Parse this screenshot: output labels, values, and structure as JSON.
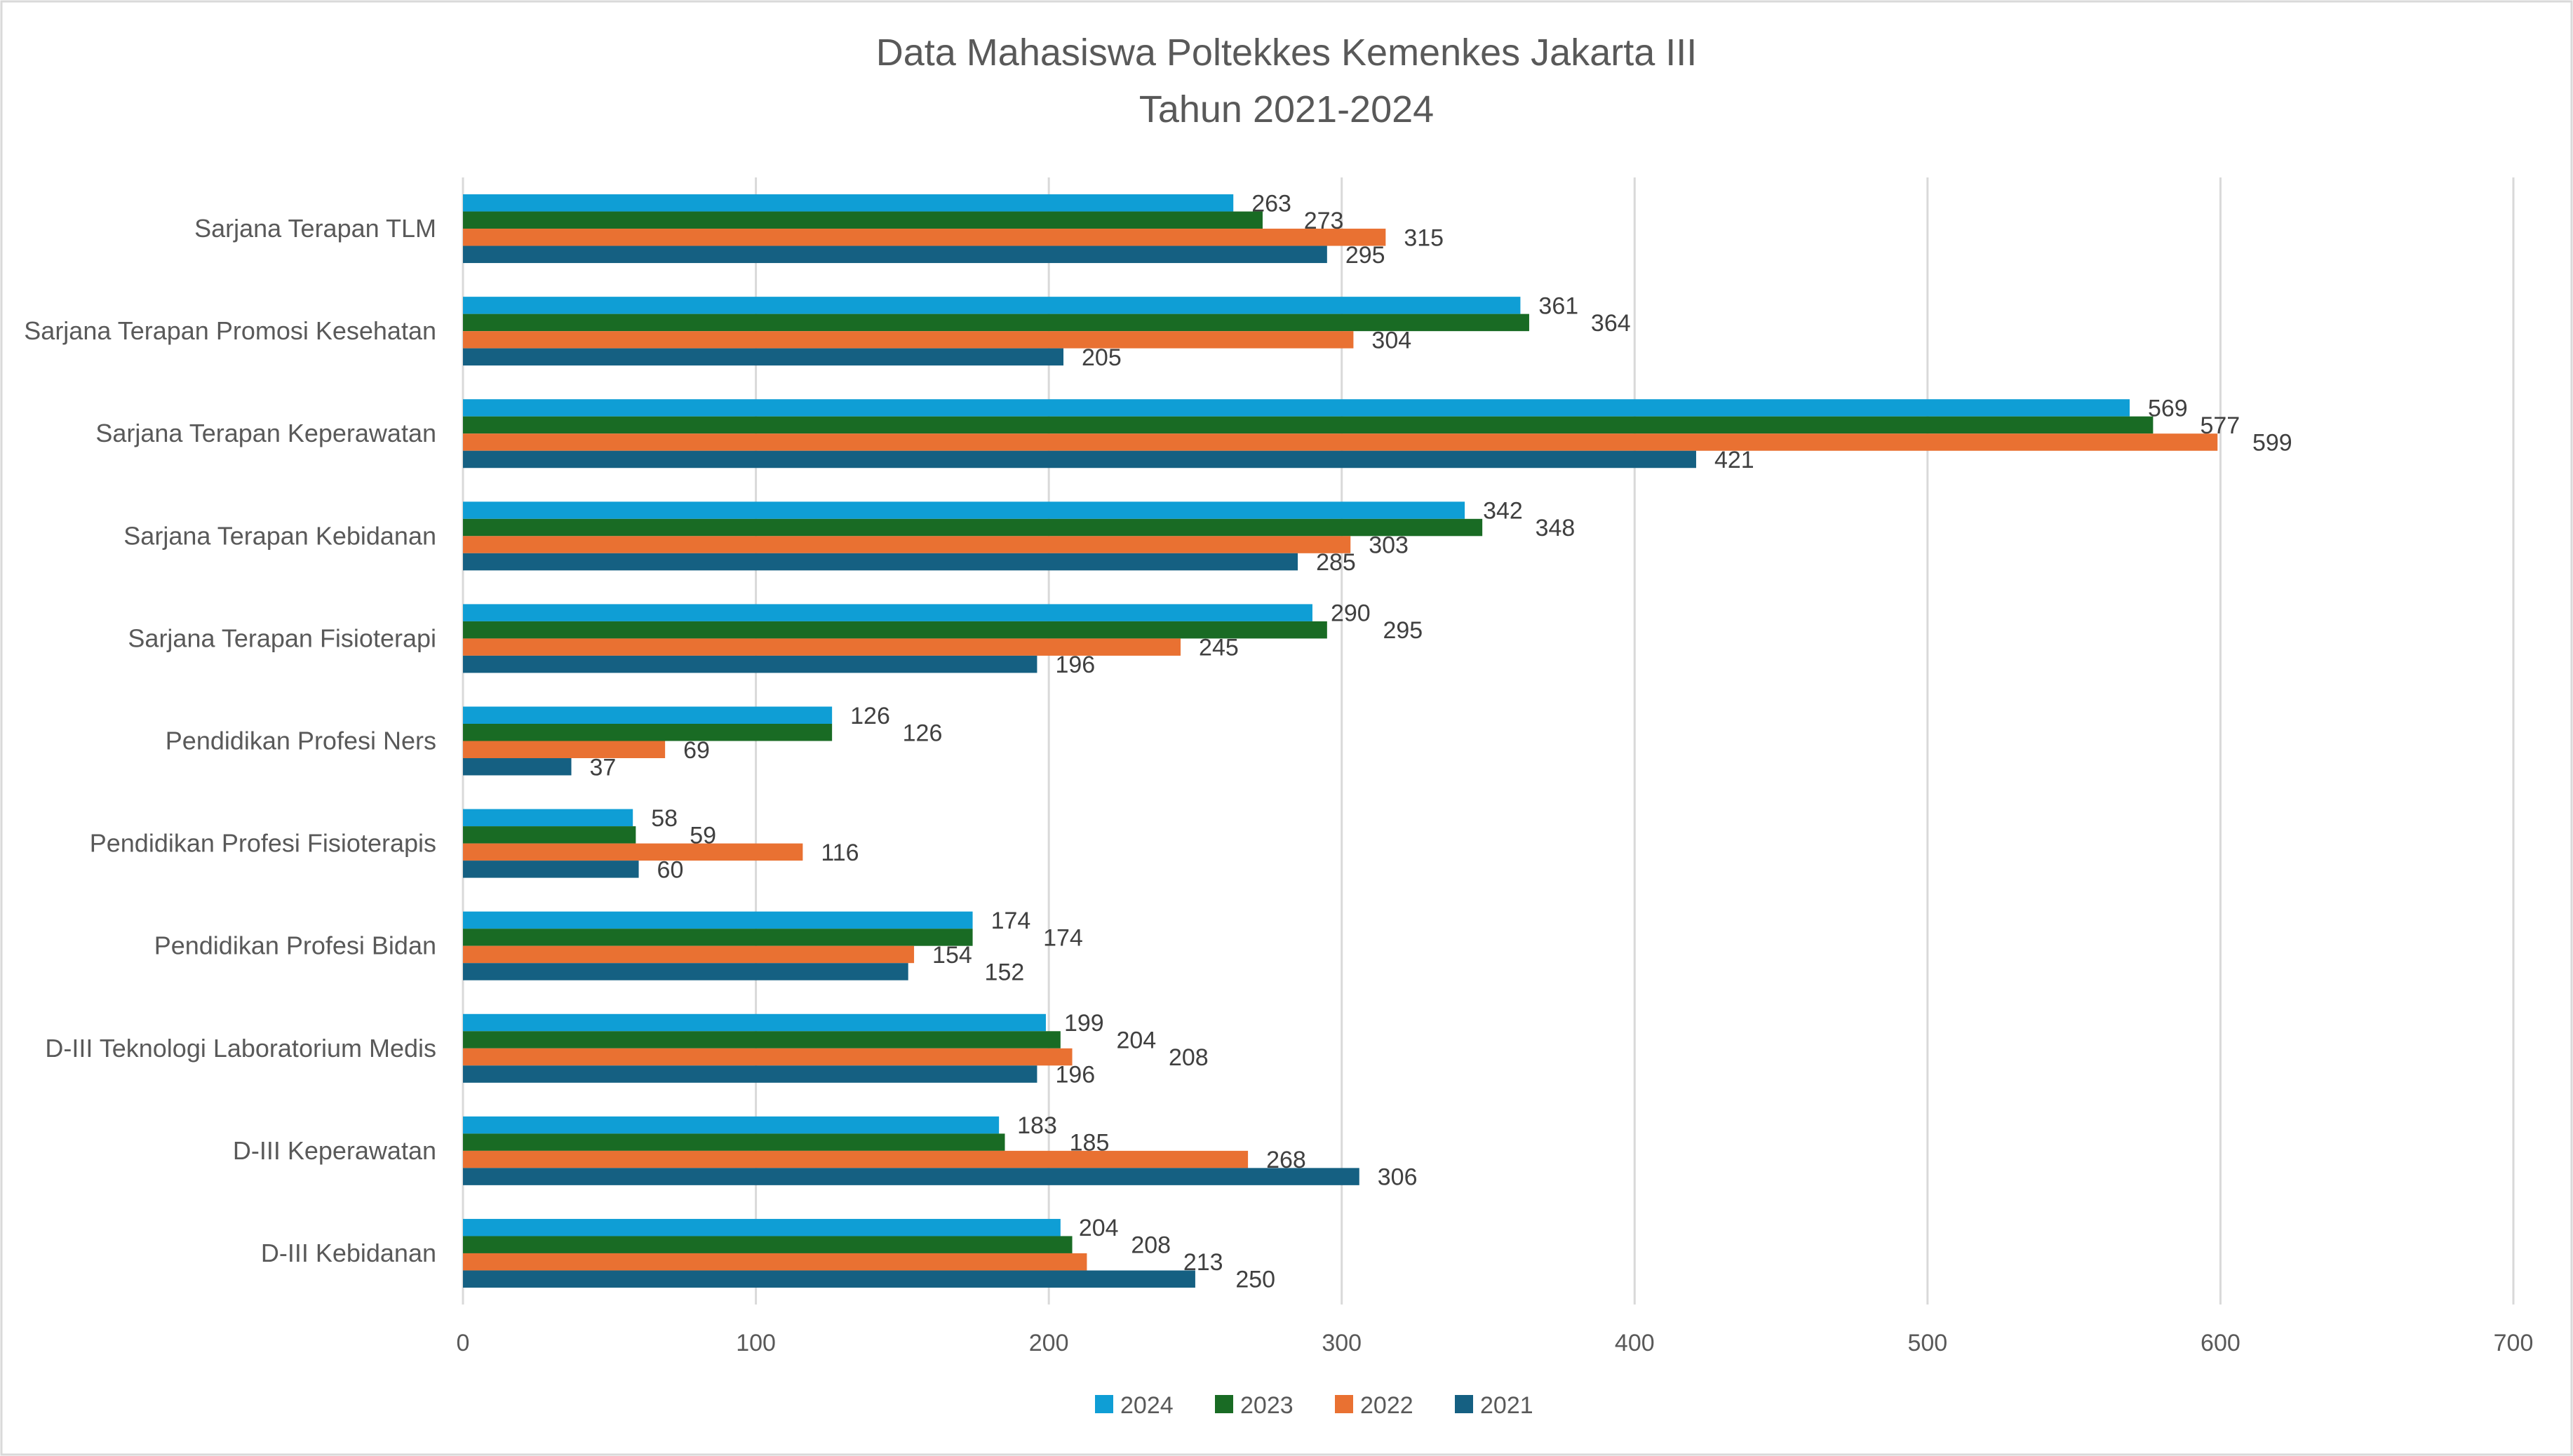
{
  "chart_data": {
    "type": "bar",
    "orientation": "horizontal",
    "title": "Data Mahasiswa Poltekkes Kemenkes Jakarta III",
    "subtitle": "Tahun 2021-2024",
    "xlabel": "",
    "ylabel": "",
    "xlim": [
      0,
      700
    ],
    "xticks": [
      0,
      100,
      200,
      300,
      400,
      500,
      600,
      700
    ],
    "grid": true,
    "legend_position": "bottom",
    "categories": [
      "Sarjana Terapan TLM",
      "Sarjana Terapan Promosi Kesehatan",
      "Sarjana Terapan Keperawatan",
      "Sarjana Terapan Kebidanan",
      "Sarjana Terapan Fisioterapi",
      "Pendidikan Profesi Ners",
      "Pendidikan Profesi Fisioterapis",
      "Pendidikan Profesi Bidan",
      "D-III Teknologi Laboratorium Medis",
      "D-III Keperawatan",
      "D-III Kebidanan"
    ],
    "series": [
      {
        "name": "2024",
        "color": "#0F9ED5",
        "values": [
          263,
          361,
          569,
          342,
          290,
          126,
          58,
          174,
          199,
          183,
          204
        ]
      },
      {
        "name": "2023",
        "color": "#196B24",
        "values": [
          273,
          364,
          577,
          348,
          295,
          126,
          59,
          174,
          204,
          185,
          208
        ]
      },
      {
        "name": "2022",
        "color": "#E97132",
        "values": [
          315,
          304,
          599,
          303,
          245,
          69,
          116,
          154,
          208,
          268,
          213
        ]
      },
      {
        "name": "2021",
        "color": "#156082",
        "values": [
          295,
          205,
          421,
          285,
          196,
          37,
          60,
          152,
          196,
          306,
          250
        ]
      }
    ]
  }
}
